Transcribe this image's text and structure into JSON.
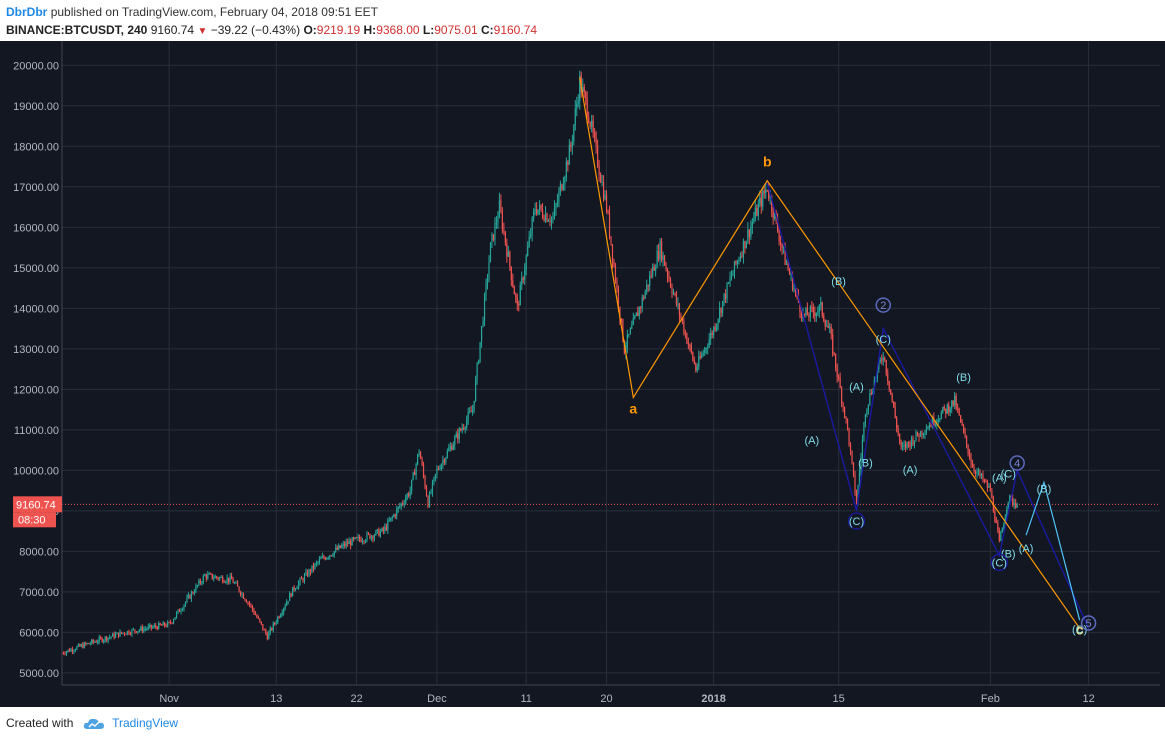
{
  "header": {
    "author": "DbrDbr",
    "published": "published on TradingView.com, February 04, 2018 09:51 EET",
    "symbol": "BINANCE:BTCUSDT, 240",
    "last": "9160.74",
    "change": "−39.22 (−0.43%)",
    "o_label": "O:",
    "o_value": "9219.19",
    "h_label": "H:",
    "h_value": "9368.00",
    "l_label": "L:",
    "l_value": "9075.01",
    "c_label": "C:",
    "c_value": "9160.74"
  },
  "price_tag": {
    "price": "9160.74",
    "countdown": "08:30"
  },
  "footer": {
    "created_with": "Created with",
    "brand": "TradingView"
  },
  "colors": {
    "background": "#131722",
    "grid": "#2a2e39",
    "up": "#26a69a",
    "down": "#ef5350",
    "orange": "#ff9800",
    "navy": "#1a1aa0",
    "cyan": "#4fc3f7",
    "label_cyan": "#80deea",
    "price_tag": "#ef5350"
  },
  "chart_data": {
    "type": "candlestick",
    "symbol": "BTCUSDT",
    "timeframe": "240",
    "ylim": [
      4700,
      20600
    ],
    "grid": true,
    "y_ticks": [
      5000,
      6000,
      7000,
      8000,
      9000,
      10000,
      11000,
      12000,
      13000,
      14000,
      15000,
      16000,
      17000,
      18000,
      19000,
      20000
    ],
    "y_tick_labels": [
      "5000.00",
      "6000.00",
      "7000.00",
      "8000.00",
      "9000.00",
      "10000.00",
      "11000.00",
      "12000.00",
      "13000.00",
      "14000.00",
      "15000.00",
      "16000.00",
      "17000.00",
      "18000.00",
      "19000.00",
      "20000.00"
    ],
    "x_ticks": [
      {
        "date": "2017-11-01",
        "label": "Nov"
      },
      {
        "date": "2017-11-13",
        "label": "13"
      },
      {
        "date": "2017-11-22",
        "label": "22"
      },
      {
        "date": "2017-12-01",
        "label": "Dec"
      },
      {
        "date": "2017-12-11",
        "label": "11"
      },
      {
        "date": "2017-12-20",
        "label": "20"
      },
      {
        "date": "2018-01-01",
        "label": "2018"
      },
      {
        "date": "2018-01-15",
        "label": "15"
      },
      {
        "date": "2018-02-01",
        "label": "Feb"
      },
      {
        "date": "2018-02-12",
        "label": "12"
      }
    ],
    "x_range": [
      "2017-10-20",
      "2018-02-20"
    ],
    "price_path": [
      {
        "date": "2017-10-20",
        "price": 5500
      },
      {
        "date": "2017-10-24",
        "price": 5800
      },
      {
        "date": "2017-10-27",
        "price": 6000
      },
      {
        "date": "2017-11-01",
        "price": 6200
      },
      {
        "date": "2017-11-05",
        "price": 7400
      },
      {
        "date": "2017-11-08",
        "price": 7300
      },
      {
        "date": "2017-11-10",
        "price": 6700
      },
      {
        "date": "2017-11-12",
        "price": 5900
      },
      {
        "date": "2017-11-15",
        "price": 7100
      },
      {
        "date": "2017-11-18",
        "price": 7800
      },
      {
        "date": "2017-11-21",
        "price": 8200
      },
      {
        "date": "2017-11-25",
        "price": 8500
      },
      {
        "date": "2017-11-28",
        "price": 9500
      },
      {
        "date": "2017-11-29",
        "price": 10500
      },
      {
        "date": "2017-11-30",
        "price": 9200
      },
      {
        "date": "2017-12-01",
        "price": 10000
      },
      {
        "date": "2017-12-05",
        "price": 11500
      },
      {
        "date": "2017-12-07",
        "price": 15500
      },
      {
        "date": "2017-12-08",
        "price": 16500
      },
      {
        "date": "2017-12-10",
        "price": 14000
      },
      {
        "date": "2017-12-12",
        "price": 16500
      },
      {
        "date": "2017-12-14",
        "price": 16200
      },
      {
        "date": "2017-12-16",
        "price": 18000
      },
      {
        "date": "2017-12-17",
        "price": 19600
      },
      {
        "date": "2017-12-18",
        "price": 18800
      },
      {
        "date": "2017-12-20",
        "price": 16500
      },
      {
        "date": "2017-12-22",
        "price": 13000
      },
      {
        "date": "2017-12-24",
        "price": 14200
      },
      {
        "date": "2017-12-26",
        "price": 15500
      },
      {
        "date": "2017-12-28",
        "price": 14000
      },
      {
        "date": "2017-12-30",
        "price": 12500
      },
      {
        "date": "2018-01-01",
        "price": 13500
      },
      {
        "date": "2018-01-03",
        "price": 14800
      },
      {
        "date": "2018-01-06",
        "price": 16500
      },
      {
        "date": "2018-01-07",
        "price": 17000
      },
      {
        "date": "2018-01-09",
        "price": 15200
      },
      {
        "date": "2018-01-11",
        "price": 13800
      },
      {
        "date": "2018-01-13",
        "price": 14000
      },
      {
        "date": "2018-01-14",
        "price": 13400
      },
      {
        "date": "2018-01-16",
        "price": 11000
      },
      {
        "date": "2018-01-17",
        "price": 9200
      },
      {
        "date": "2018-01-18",
        "price": 11500
      },
      {
        "date": "2018-01-20",
        "price": 12900
      },
      {
        "date": "2018-01-22",
        "price": 10500
      },
      {
        "date": "2018-01-24",
        "price": 10900
      },
      {
        "date": "2018-01-27",
        "price": 11500
      },
      {
        "date": "2018-01-28",
        "price": 11700
      },
      {
        "date": "2018-01-30",
        "price": 10100
      },
      {
        "date": "2018-02-01",
        "price": 9500
      },
      {
        "date": "2018-02-02",
        "price": 8200
      },
      {
        "date": "2018-02-03",
        "price": 9300
      },
      {
        "date": "2018-02-04",
        "price": 9160
      }
    ],
    "last_price": 9160.74,
    "annotations": {
      "orange_wave": [
        {
          "date": "2017-12-17",
          "price": 19700
        },
        {
          "date": "2017-12-23",
          "price": 11800,
          "label": "a"
        },
        {
          "date": "2018-01-07",
          "price": 17150,
          "label": "b"
        },
        {
          "date": "2018-02-11",
          "price": 6100,
          "label": "c"
        }
      ],
      "navy_wave": [
        {
          "date": "2018-01-07",
          "price": 17100
        },
        {
          "date": "2018-01-17",
          "price": 9000
        },
        {
          "date": "2018-01-20",
          "price": 13500,
          "label": "2"
        },
        {
          "date": "2018-02-02",
          "price": 7900
        },
        {
          "date": "2018-02-04",
          "price": 10000,
          "label": "4"
        },
        {
          "date": "2018-02-12",
          "price": 6100,
          "label": "5"
        }
      ],
      "cyan_path": [
        {
          "date": "2018-02-05",
          "price": 8400
        },
        {
          "date": "2018-02-07",
          "price": 9700
        },
        {
          "date": "2018-02-11",
          "price": 6300
        }
      ],
      "wave_labels": [
        {
          "date": "2017-12-23",
          "price": 11400,
          "text": "a",
          "style": "orange-bold"
        },
        {
          "date": "2018-01-07",
          "price": 17500,
          "text": "b",
          "style": "orange-bold"
        },
        {
          "date": "2018-02-11",
          "price": 5950,
          "text": "c",
          "style": "yellow-bold"
        },
        {
          "date": "2018-01-15",
          "price": 14580,
          "text": "(B)",
          "style": "cyan"
        },
        {
          "date": "2018-01-12",
          "price": 10650,
          "text": "(A)",
          "style": "cyan"
        },
        {
          "date": "2018-01-17",
          "price": 11970,
          "text": "(A)",
          "style": "cyan"
        },
        {
          "date": "2018-01-18",
          "price": 10100,
          "text": "(B)",
          "style": "cyan"
        },
        {
          "date": "2018-01-17",
          "price": 8650,
          "text": "(C)",
          "style": "cyan-circle"
        },
        {
          "date": "2018-01-20",
          "price": 13140,
          "text": "(C)",
          "style": "cyan"
        },
        {
          "date": "2018-01-23",
          "price": 9920,
          "text": "(A)",
          "style": "cyan"
        },
        {
          "date": "2018-01-29",
          "price": 12200,
          "text": "(B)",
          "style": "cyan"
        },
        {
          "date": "2018-02-02",
          "price": 9720,
          "text": "(A)",
          "style": "cyan"
        },
        {
          "date": "2018-02-03",
          "price": 9820,
          "text": "(C)",
          "style": "cyan"
        },
        {
          "date": "2018-02-03",
          "price": 7850,
          "text": "(B)",
          "style": "cyan"
        },
        {
          "date": "2018-02-02",
          "price": 7630,
          "text": "(C)",
          "style": "cyan-circle"
        },
        {
          "date": "2018-02-05",
          "price": 7980,
          "text": "(A)",
          "style": "cyan"
        },
        {
          "date": "2018-02-07",
          "price": 9450,
          "text": "(B)",
          "style": "cyan"
        },
        {
          "date": "2018-02-11",
          "price": 5980,
          "text": "(C)",
          "style": "cyan"
        }
      ],
      "circle_labels": [
        {
          "date": "2018-01-20",
          "price": 14080,
          "text": "2"
        },
        {
          "date": "2018-02-04",
          "price": 10180,
          "text": "4"
        },
        {
          "date": "2018-02-12",
          "price": 6230,
          "text": "5"
        }
      ]
    }
  }
}
